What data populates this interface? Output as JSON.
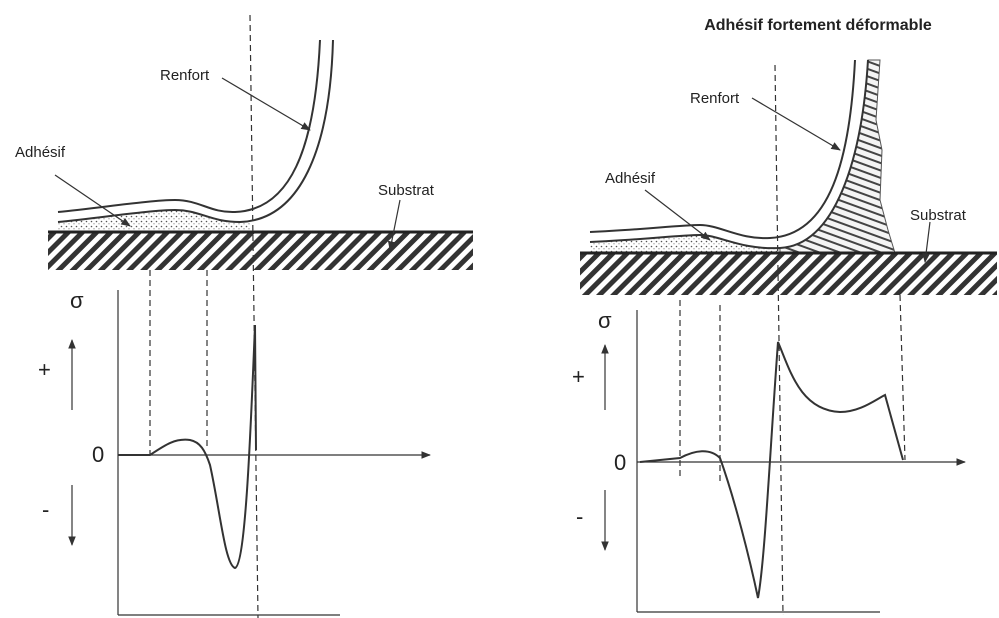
{
  "title": "Adhésif fortement déformable",
  "panels": [
    {
      "renfort": "Renfort",
      "adhesif": "Adhésif",
      "substrat": "Substrat",
      "sigma": "σ",
      "plus": "+",
      "zero": "0",
      "minus": "-"
    },
    {
      "renfort": "Renfort",
      "adhesif": "Adhésif",
      "substrat": "Substrat",
      "sigma": "σ",
      "plus": "+",
      "zero": "0",
      "minus": "-"
    }
  ]
}
